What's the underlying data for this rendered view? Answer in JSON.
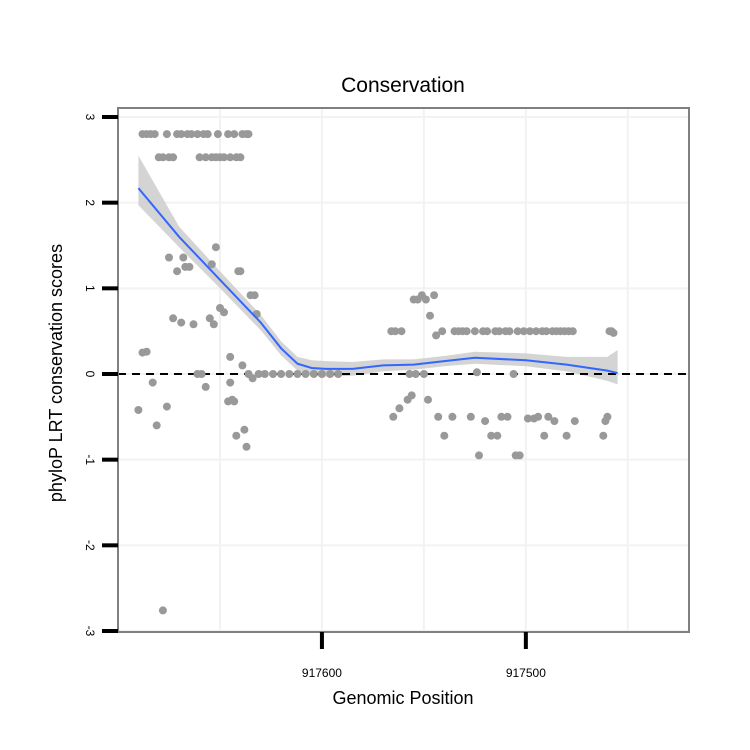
{
  "chart_data": {
    "type": "scatter",
    "title": "Conservation",
    "xlabel": "Genomic Position",
    "ylabel": "phyloP LRT conservation scores",
    "xlim": [
      917700,
      917420
    ],
    "ylim": [
      -3,
      3
    ],
    "x_reversed": true,
    "xticks": [
      917600,
      917500
    ],
    "xtick_labels": [
      "917600",
      "917500"
    ],
    "yticks": [
      -3,
      -2,
      -1,
      0,
      1,
      2,
      3
    ],
    "ytick_labels": [
      "-3",
      "-2",
      "-1",
      "0",
      "1",
      "2",
      "3"
    ],
    "reference_line": {
      "y": 0,
      "style": "dashed"
    },
    "grid": true,
    "colors": {
      "points": "#999999",
      "smooth_line": "#3366ff",
      "confidence_band": "#cccccc",
      "panel_border": "#808080",
      "grid": "#f2f2f2"
    },
    "series": [
      {
        "name": "scores",
        "points": [
          [
            917688,
            2.8
          ],
          [
            917686,
            2.8
          ],
          [
            917684,
            2.8
          ],
          [
            917682,
            2.8
          ],
          [
            917680,
            2.53
          ],
          [
            917678,
            2.53
          ],
          [
            917676,
            2.8
          ],
          [
            917675,
            2.53
          ],
          [
            917673,
            2.53
          ],
          [
            917671,
            2.8
          ],
          [
            917669,
            2.8
          ],
          [
            917666,
            2.8
          ],
          [
            917664,
            2.8
          ],
          [
            917661,
            2.8
          ],
          [
            917660,
            2.53
          ],
          [
            917658,
            2.8
          ],
          [
            917657,
            2.53
          ],
          [
            917656,
            2.8
          ],
          [
            917654,
            2.53
          ],
          [
            917652,
            2.53
          ],
          [
            917651,
            2.8
          ],
          [
            917650,
            2.53
          ],
          [
            917648,
            2.53
          ],
          [
            917646,
            2.8
          ],
          [
            917645,
            2.53
          ],
          [
            917643,
            2.8
          ],
          [
            917642,
            2.53
          ],
          [
            917640,
            2.53
          ],
          [
            917639,
            2.8
          ],
          [
            917637,
            2.8
          ],
          [
            917636,
            2.8
          ],
          [
            917690,
            -0.42
          ],
          [
            917688,
            0.25
          ],
          [
            917686,
            0.26
          ],
          [
            917683,
            -0.1
          ],
          [
            917681,
            -0.6
          ],
          [
            917678,
            -2.76
          ],
          [
            917676,
            -0.38
          ],
          [
            917675,
            1.36
          ],
          [
            917673,
            0.65
          ],
          [
            917671,
            1.2
          ],
          [
            917669,
            0.6
          ],
          [
            917668,
            1.36
          ],
          [
            917667,
            1.25
          ],
          [
            917665,
            1.25
          ],
          [
            917663,
            0.58
          ],
          [
            917661,
            0.0
          ],
          [
            917659,
            0.0
          ],
          [
            917657,
            -0.15
          ],
          [
            917655,
            0.65
          ],
          [
            917654,
            1.28
          ],
          [
            917653,
            0.58
          ],
          [
            917652,
            1.48
          ],
          [
            917650,
            0.77
          ],
          [
            917648,
            0.72
          ],
          [
            917646,
            -0.32
          ],
          [
            917645,
            -0.1
          ],
          [
            917645,
            0.2
          ],
          [
            917644,
            -0.3
          ],
          [
            917643,
            -0.32
          ],
          [
            917642,
            -0.72
          ],
          [
            917641,
            1.2
          ],
          [
            917640,
            1.2
          ],
          [
            917639,
            0.1
          ],
          [
            917638,
            -0.65
          ],
          [
            917637,
            -0.85
          ],
          [
            917636,
            0.0
          ],
          [
            917635,
            0.92
          ],
          [
            917634,
            -0.05
          ],
          [
            917633,
            0.92
          ],
          [
            917632,
            0.7
          ],
          [
            917631,
            0.0
          ],
          [
            917628,
            0.0
          ],
          [
            917624,
            0.0
          ],
          [
            917620,
            0.0
          ],
          [
            917616,
            0.0
          ],
          [
            917612,
            0.0
          ],
          [
            917608,
            0.0
          ],
          [
            917604,
            0.0
          ],
          [
            917600,
            0.0
          ],
          [
            917596,
            0.0
          ],
          [
            917592,
            0.0
          ],
          [
            917566,
            0.5
          ],
          [
            917565,
            -0.5
          ],
          [
            917564,
            0.5
          ],
          [
            917562,
            -0.4
          ],
          [
            917561,
            0.5
          ],
          [
            917558,
            -0.3
          ],
          [
            917557,
            0.0
          ],
          [
            917556,
            -0.25
          ],
          [
            917555,
            0.87
          ],
          [
            917554,
            0.0
          ],
          [
            917553,
            0.87
          ],
          [
            917551,
            0.92
          ],
          [
            917550,
            0.0
          ],
          [
            917549,
            0.87
          ],
          [
            917548,
            -0.3
          ],
          [
            917547,
            0.68
          ],
          [
            917545,
            0.92
          ],
          [
            917544,
            0.45
          ],
          [
            917543,
            -0.5
          ],
          [
            917541,
            0.5
          ],
          [
            917540,
            -0.72
          ],
          [
            917536,
            -0.5
          ],
          [
            917535,
            0.5
          ],
          [
            917533,
            0.5
          ],
          [
            917531,
            0.5
          ],
          [
            917529,
            0.5
          ],
          [
            917527,
            -0.5
          ],
          [
            917525,
            0.5
          ],
          [
            917524,
            0.02
          ],
          [
            917523,
            -0.95
          ],
          [
            917521,
            0.5
          ],
          [
            917520,
            -0.55
          ],
          [
            917519,
            0.5
          ],
          [
            917517,
            -0.72
          ],
          [
            917515,
            0.5
          ],
          [
            917514,
            -0.72
          ],
          [
            917513,
            0.5
          ],
          [
            917512,
            -0.5
          ],
          [
            917510,
            0.5
          ],
          [
            917509,
            -0.5
          ],
          [
            917508,
            0.5
          ],
          [
            917506,
            0.0
          ],
          [
            917505,
            -0.95
          ],
          [
            917504,
            0.5
          ],
          [
            917503,
            -0.95
          ],
          [
            917501,
            0.5
          ],
          [
            917499,
            -0.52
          ],
          [
            917498,
            0.5
          ],
          [
            917496,
            -0.52
          ],
          [
            917495,
            0.5
          ],
          [
            917494,
            -0.5
          ],
          [
            917492,
            0.5
          ],
          [
            917491,
            -0.72
          ],
          [
            917490,
            0.5
          ],
          [
            917489,
            -0.5
          ],
          [
            917487,
            0.5
          ],
          [
            917486,
            -0.55
          ],
          [
            917485,
            0.5
          ],
          [
            917483,
            0.5
          ],
          [
            917481,
            0.5
          ],
          [
            917480,
            -0.72
          ],
          [
            917479,
            0.5
          ],
          [
            917477,
            0.5
          ],
          [
            917476,
            -0.55
          ],
          [
            917462,
            -0.72
          ],
          [
            917461,
            -0.55
          ],
          [
            917460,
            -0.5
          ],
          [
            917459,
            0.5
          ],
          [
            917458,
            0.5
          ],
          [
            917457,
            0.48
          ]
        ]
      }
    ],
    "smooth_curve": {
      "x": [
        917690,
        917670,
        917650,
        917630,
        917620,
        917612,
        917605,
        917598,
        917585,
        917570,
        917555,
        917540,
        917525,
        917500,
        917480,
        917460,
        917455
      ],
      "y": [
        2.17,
        1.6,
        1.1,
        0.6,
        0.3,
        0.12,
        0.07,
        0.06,
        0.06,
        0.1,
        0.11,
        0.15,
        0.19,
        0.16,
        0.11,
        0.04,
        0.01
      ],
      "lower": [
        1.97,
        1.48,
        1.0,
        0.51,
        0.22,
        0.04,
        -0.02,
        -0.03,
        -0.02,
        0.03,
        0.05,
        0.09,
        0.12,
        0.09,
        0.03,
        -0.08,
        -0.12
      ],
      "upper": [
        2.55,
        1.72,
        1.2,
        0.69,
        0.38,
        0.2,
        0.16,
        0.15,
        0.14,
        0.17,
        0.17,
        0.21,
        0.26,
        0.24,
        0.2,
        0.2,
        0.28
      ]
    }
  }
}
